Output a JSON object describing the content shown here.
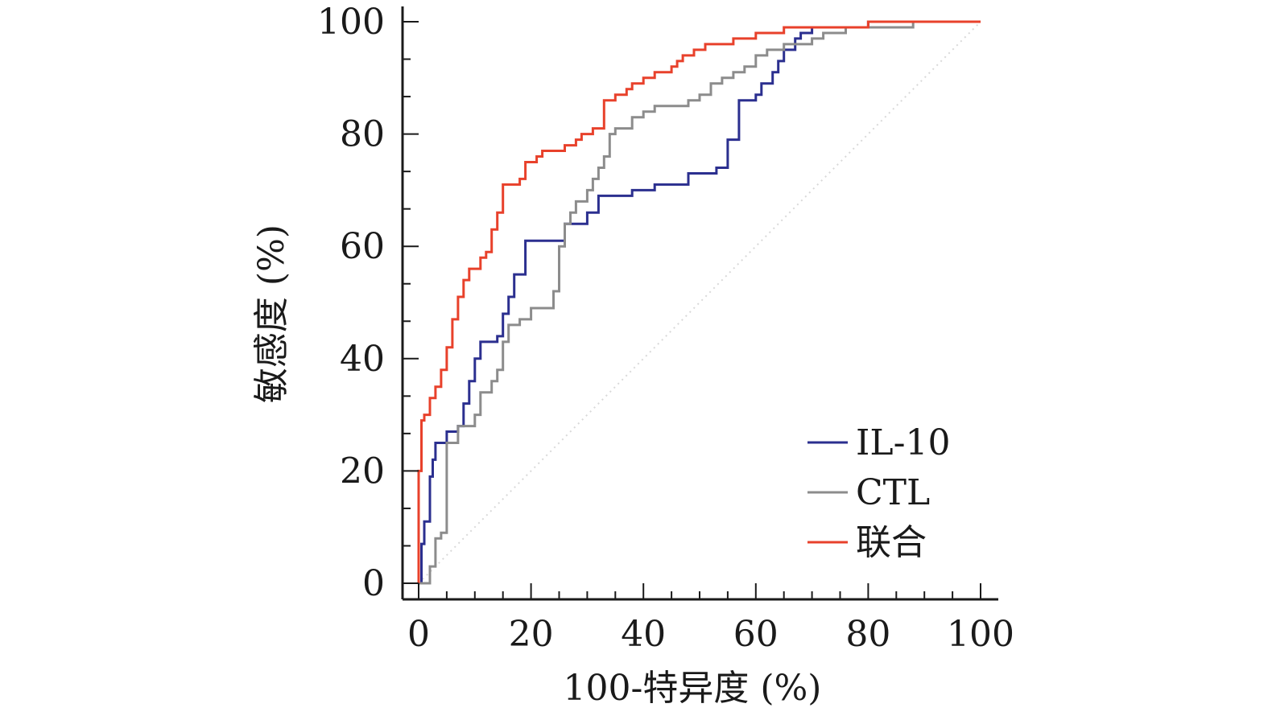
{
  "chart_data": {
    "type": "line",
    "xlabel": "100-特异度 (%)",
    "ylabel": "敏感度 (%)",
    "xlim": [
      0,
      100
    ],
    "ylim": [
      0,
      100
    ],
    "x_ticks": [
      "0",
      "20",
      "40",
      "60",
      "80",
      "100"
    ],
    "y_ticks": [
      "0",
      "20",
      "40",
      "60",
      "80",
      "100"
    ],
    "grid": false,
    "legend_position": "bottom-right",
    "reference_line": {
      "x": [
        0,
        100
      ],
      "y": [
        0,
        100
      ],
      "style": "dotted",
      "color": "#d9d9d9"
    },
    "series": [
      {
        "name": "IL-10",
        "color": "#2b2f8f",
        "x": [
          0,
          0.5,
          0.5,
          1,
          1,
          2,
          2,
          2.5,
          2.5,
          3,
          3,
          5,
          5,
          7,
          7,
          8,
          8,
          9,
          9,
          10,
          10,
          11,
          11,
          14,
          14,
          15,
          15,
          16,
          16,
          17,
          17,
          19,
          19,
          20,
          20,
          26,
          26,
          28,
          28,
          30,
          30,
          32,
          32,
          38,
          38,
          42,
          42,
          47,
          47,
          48,
          48,
          53,
          53,
          55,
          55,
          57,
          57,
          60,
          60,
          61,
          61,
          63,
          63,
          64,
          64,
          65,
          65,
          67,
          67,
          68,
          68,
          70,
          70,
          80,
          80,
          100
        ],
        "y": [
          0,
          0,
          7,
          7,
          11,
          11,
          19,
          19,
          22,
          22,
          25,
          25,
          27,
          27,
          28,
          28,
          32,
          32,
          36,
          36,
          40,
          40,
          43,
          43,
          44,
          44,
          48,
          48,
          51,
          51,
          55,
          55,
          61,
          61,
          61,
          61,
          64,
          64,
          64,
          64,
          66,
          66,
          69,
          69,
          70,
          70,
          71,
          71,
          71,
          71,
          73,
          73,
          74,
          74,
          79,
          79,
          86,
          86,
          87,
          87,
          89,
          89,
          91,
          91,
          93,
          93,
          95,
          95,
          97,
          97,
          98,
          98,
          99,
          99,
          100,
          100
        ]
      },
      {
        "name": "CTL",
        "color": "#8c8c8c",
        "x": [
          0,
          2,
          2,
          3,
          3,
          4,
          4,
          5,
          5,
          7,
          7,
          10,
          10,
          11,
          11,
          13,
          13,
          14,
          14,
          15,
          15,
          16,
          16,
          18,
          18,
          20,
          20,
          24,
          24,
          25,
          25,
          26,
          26,
          27,
          27,
          28,
          28,
          30,
          30,
          31,
          31,
          32,
          32,
          33,
          33,
          34,
          34,
          35,
          35,
          38,
          38,
          40,
          40,
          42,
          42,
          48,
          48,
          50,
          50,
          52,
          52,
          54,
          54,
          56,
          56,
          58,
          58,
          60,
          60,
          62,
          62,
          65,
          65,
          70,
          70,
          72,
          72,
          76,
          76,
          80,
          80,
          88,
          88,
          100
        ],
        "y": [
          0,
          0,
          3,
          3,
          8,
          8,
          9,
          9,
          25,
          25,
          28,
          28,
          30,
          30,
          34,
          34,
          36,
          36,
          38,
          38,
          43,
          43,
          46,
          46,
          47,
          47,
          49,
          49,
          52,
          52,
          60,
          60,
          64,
          64,
          66,
          66,
          68,
          68,
          70,
          70,
          72,
          72,
          74,
          74,
          76,
          76,
          80,
          80,
          81,
          81,
          83,
          83,
          84,
          84,
          85,
          85,
          86,
          86,
          87,
          87,
          89,
          89,
          90,
          90,
          91,
          91,
          92,
          92,
          94,
          94,
          95,
          95,
          96,
          96,
          97,
          97,
          98,
          98,
          99,
          99,
          99,
          99,
          100,
          100
        ]
      },
      {
        "name": "联合",
        "color": "#e8412b",
        "x": [
          0,
          0,
          0.5,
          0.5,
          1,
          1,
          2,
          2,
          3,
          3,
          4,
          4,
          5,
          5,
          6,
          6,
          7,
          7,
          8,
          8,
          9,
          9,
          11,
          11,
          12,
          12,
          13,
          13,
          14,
          14,
          15,
          15,
          18,
          18,
          19,
          19,
          21,
          21,
          22,
          22,
          25,
          25,
          26,
          26,
          28,
          28,
          29,
          29,
          31,
          31,
          33,
          33,
          35,
          35,
          37,
          37,
          38,
          38,
          40,
          40,
          42,
          42,
          45,
          45,
          46,
          46,
          47,
          47,
          49,
          49,
          51,
          51,
          56,
          56,
          57,
          57,
          60,
          60,
          62,
          62,
          65,
          65,
          67,
          67,
          70,
          70,
          80,
          80,
          100
        ],
        "y": [
          0,
          20,
          20,
          29,
          29,
          30,
          30,
          33,
          33,
          35,
          35,
          38,
          38,
          42,
          42,
          47,
          47,
          51,
          51,
          54,
          54,
          56,
          56,
          58,
          58,
          59,
          59,
          63,
          63,
          66,
          66,
          71,
          71,
          72,
          72,
          75,
          75,
          76,
          76,
          77,
          77,
          77,
          77,
          78,
          78,
          79,
          79,
          80,
          80,
          81,
          81,
          86,
          86,
          87,
          87,
          88,
          88,
          89,
          89,
          90,
          90,
          91,
          91,
          92,
          92,
          93,
          93,
          94,
          94,
          95,
          95,
          96,
          96,
          97,
          97,
          97,
          97,
          98,
          98,
          98,
          98,
          99,
          99,
          99,
          99,
          99,
          99,
          100,
          100
        ]
      }
    ]
  }
}
